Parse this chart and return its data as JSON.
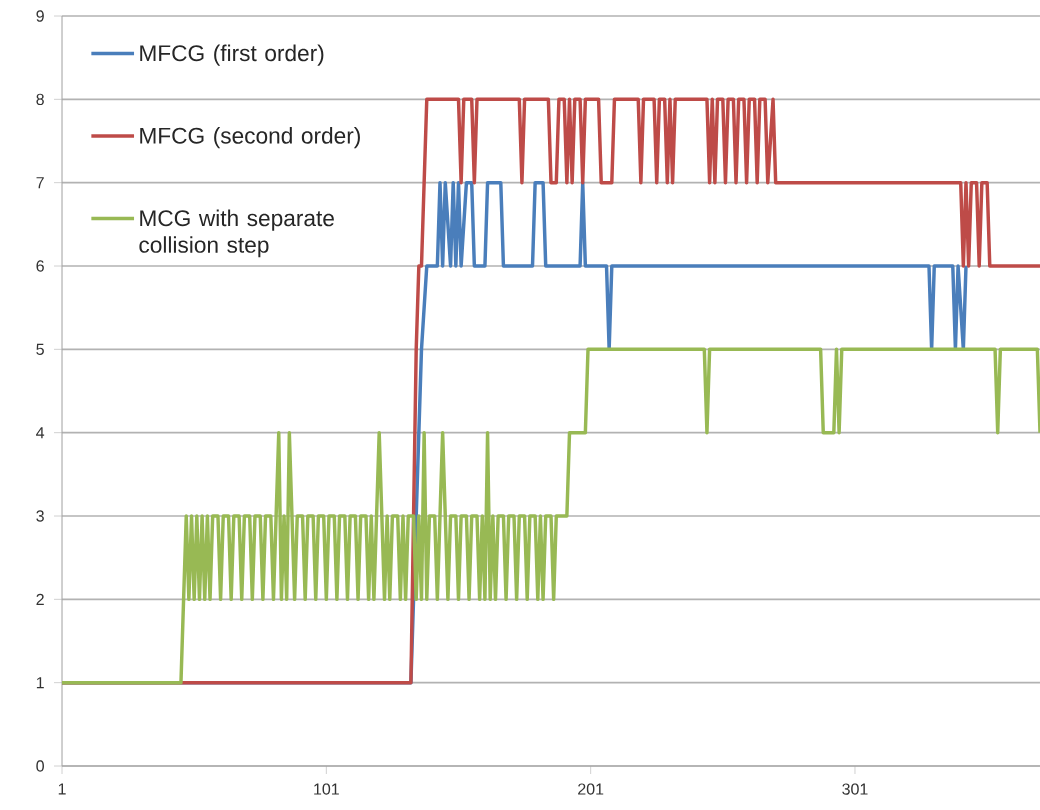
{
  "chart_data": {
    "type": "line",
    "xlim": [
      1,
      371
    ],
    "xticks": [
      1,
      101,
      201,
      301
    ],
    "ylim": [
      0,
      9
    ],
    "yticks": [
      0,
      1,
      2,
      3,
      4,
      5,
      6,
      7,
      8,
      9
    ],
    "grid": "y",
    "legend": "top left",
    "marker": "none",
    "line_style": "solid",
    "series": [
      {
        "name": "MFCG (first order)",
        "color": "#4a7ebb",
        "x": [
          1,
          133,
          137,
          139,
          143,
          144,
          145,
          146,
          148,
          149,
          150,
          151,
          152,
          154,
          156,
          157,
          161,
          162,
          167,
          168,
          179,
          180,
          183,
          184,
          197,
          198,
          199,
          207,
          208,
          209,
          329,
          330,
          331,
          338,
          339,
          340,
          342,
          343
        ],
        "values": [
          1,
          1,
          5,
          6,
          6,
          7,
          6,
          7,
          6,
          7,
          6,
          7,
          6,
          7,
          7,
          6,
          6,
          7,
          7,
          6,
          6,
          7,
          7,
          6,
          6,
          7,
          6,
          6,
          5,
          6,
          6,
          5,
          6,
          6,
          5,
          6,
          5,
          6
        ]
      },
      {
        "name": "MFCG (second order)",
        "color": "#be4b48",
        "x": [
          1,
          133,
          135,
          136,
          137,
          139,
          151,
          152,
          153,
          156,
          157,
          158,
          174,
          175,
          176,
          185,
          186,
          188,
          189,
          191,
          192,
          193,
          194,
          195,
          197,
          198,
          199,
          204,
          205,
          209,
          210,
          219,
          220,
          221,
          225,
          226,
          227,
          229,
          230,
          231,
          232,
          233,
          245,
          246,
          247,
          248,
          249,
          251,
          252,
          253,
          255,
          256,
          257,
          259,
          260,
          261,
          263,
          264,
          265,
          267,
          268,
          270,
          271,
          273,
          341,
          342,
          343,
          344,
          345,
          347,
          348,
          349,
          351,
          352,
          353,
          371
        ],
        "values": [
          1,
          1,
          5,
          6,
          6,
          8,
          8,
          7,
          8,
          8,
          7,
          8,
          8,
          7,
          8,
          8,
          7,
          7,
          8,
          8,
          7,
          8,
          7,
          8,
          8,
          7,
          8,
          8,
          7,
          7,
          8,
          8,
          7,
          8,
          8,
          7,
          8,
          8,
          7,
          8,
          7,
          8,
          8,
          7,
          8,
          7,
          8,
          8,
          7,
          8,
          8,
          7,
          8,
          8,
          7,
          8,
          8,
          7,
          8,
          8,
          7,
          8,
          7,
          7,
          7,
          6,
          7,
          6,
          7,
          7,
          6,
          7,
          7,
          6,
          6,
          6
        ]
      },
      {
        "name": "MCG with separate collision step",
        "color": "#98b954",
        "x": [
          1,
          46,
          47,
          48,
          49,
          50,
          51,
          52,
          53,
          54,
          55,
          56,
          57,
          58,
          60,
          61,
          62,
          64,
          65,
          66,
          68,
          69,
          70,
          72,
          73,
          74,
          76,
          77,
          78,
          80,
          81,
          82,
          83,
          84,
          85,
          86,
          87,
          88,
          89,
          90,
          92,
          93,
          94,
          96,
          97,
          98,
          100,
          101,
          102,
          104,
          105,
          106,
          108,
          109,
          110,
          112,
          113,
          114,
          116,
          117,
          118,
          119,
          120,
          121,
          122,
          123,
          124,
          125,
          126,
          128,
          129,
          130,
          131,
          132,
          134,
          135,
          136,
          137,
          138,
          139,
          140,
          142,
          143,
          144,
          145,
          146,
          147,
          148,
          150,
          151,
          152,
          154,
          155,
          156,
          158,
          159,
          160,
          161,
          162,
          163,
          164,
          165,
          166,
          168,
          169,
          170,
          172,
          173,
          174,
          176,
          177,
          178,
          180,
          181,
          182,
          183,
          184,
          186,
          187,
          188,
          192,
          193,
          199,
          200,
          244,
          245,
          246,
          288,
          289,
          293,
          294,
          295,
          296,
          354,
          355,
          356,
          370,
          371
        ],
        "values": [
          1,
          1,
          2,
          3,
          2,
          3,
          2,
          3,
          2,
          3,
          2,
          3,
          2,
          3,
          3,
          2,
          3,
          3,
          2,
          3,
          3,
          2,
          3,
          3,
          2,
          3,
          3,
          2,
          3,
          3,
          2,
          3,
          4,
          2,
          3,
          2,
          4,
          3,
          2,
          3,
          3,
          2,
          3,
          3,
          2,
          3,
          3,
          2,
          3,
          3,
          2,
          3,
          3,
          2,
          3,
          3,
          2,
          3,
          3,
          2,
          3,
          2,
          3,
          4,
          3,
          2,
          3,
          2,
          3,
          3,
          2,
          3,
          2,
          3,
          3,
          2,
          3,
          2,
          4,
          2,
          3,
          3,
          2,
          3,
          4,
          3,
          2,
          3,
          3,
          2,
          3,
          3,
          2,
          3,
          3,
          2,
          3,
          2,
          4,
          2,
          3,
          2,
          3,
          3,
          2,
          3,
          3,
          2,
          3,
          3,
          2,
          3,
          3,
          2,
          3,
          2,
          3,
          3,
          2,
          3,
          3,
          4,
          4,
          5,
          5,
          4,
          5,
          5,
          4,
          4,
          5,
          4,
          5,
          5,
          4,
          5,
          5,
          4
        ]
      }
    ]
  }
}
